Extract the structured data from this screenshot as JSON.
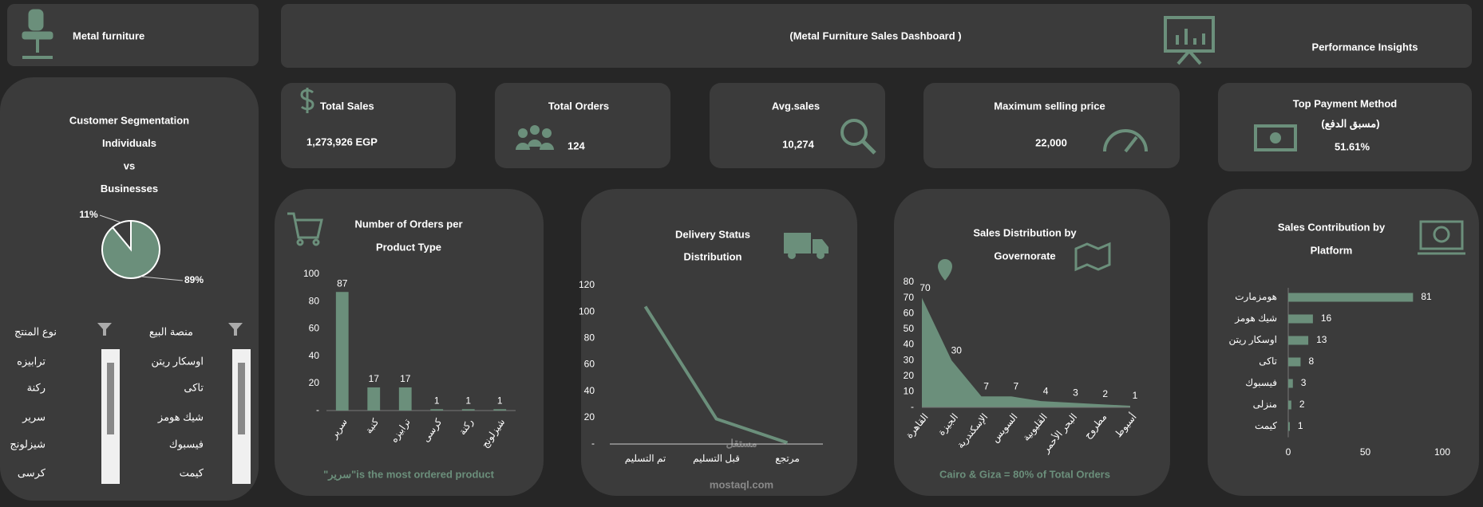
{
  "header": {
    "brand": "Metal furniture",
    "title": "(Metal Furniture Sales Dashboard )",
    "subtitle": "Performance Insights"
  },
  "kpis": [
    {
      "label": "Total Sales",
      "value": "1,273,926 EGP"
    },
    {
      "label": "Total Orders",
      "value": "124"
    },
    {
      "label": "Avg.sales",
      "value": "10,274"
    },
    {
      "label": "Maximum selling price",
      "value": "22,000"
    },
    {
      "label": "Top Payment Method",
      "detail": "(مسبق الدفع)",
      "value": "51.61%"
    }
  ],
  "slicers": [
    {
      "title": "نوع المنتج",
      "items": [
        "ترابيزه",
        "ركنة",
        "سرير",
        "شيزلونج",
        "كرسى"
      ]
    },
    {
      "title": "منصة البيع",
      "items": [
        "اوسكار ريتن",
        "تاكى",
        "شيك هومز",
        "فيسبوك",
        "كيمت"
      ]
    }
  ],
  "watermark": {
    "arabic": "مستقل",
    "latin": "mostaql.com"
  },
  "chart_data": [
    {
      "type": "pie",
      "title": [
        "Customer Segmentation",
        "Individuals",
        "vs",
        "Businesses"
      ],
      "values": [
        11,
        89
      ],
      "value_labels": [
        "11%",
        "89%"
      ],
      "colors": [
        "#3c3c3c",
        "#6b8f7b"
      ]
    },
    {
      "type": "bar",
      "title": [
        "Number of Orders per",
        "Product Type"
      ],
      "categories": [
        "سرير",
        "كنبة",
        "ترابيزه",
        "كرسى",
        "ركنة",
        "شيزلونج"
      ],
      "values": [
        87,
        17,
        17,
        1,
        1,
        1
      ],
      "color": "#6b8f7b",
      "ylim": [
        0,
        100
      ],
      "yticks": [
        {
          "value": 0,
          "label": "-"
        },
        20,
        40,
        60,
        80,
        100
      ],
      "annotation": "\"سرير\"is the most ordered product"
    },
    {
      "type": "line",
      "title": [
        "Delivery Status",
        "Distribution"
      ],
      "categories": [
        "تم التسليم",
        "قبل التسليم",
        "مرتجع"
      ],
      "values": [
        104,
        19,
        1
      ],
      "color": "#6b8f7b",
      "ylim": [
        0,
        120
      ],
      "yticks": [
        {
          "value": 0,
          "label": "-"
        },
        20,
        40,
        60,
        80,
        100,
        120
      ]
    },
    {
      "type": "area",
      "title": [
        "Sales Distribution by",
        "Governorate"
      ],
      "categories": [
        "القاهرة",
        "الجيزة",
        "الإسكندرية",
        "السويس",
        "القليوبية",
        "البحر الأحمر",
        "مطروح",
        "أسيوط"
      ],
      "values": [
        70,
        30,
        7,
        7,
        4,
        3,
        2,
        1
      ],
      "color": "#6b8f7b",
      "ylim": [
        0,
        80
      ],
      "yticks": [
        {
          "value": 0,
          "label": "-"
        },
        10,
        20,
        30,
        40,
        50,
        60,
        70,
        80
      ],
      "annotation": "Cairo & Giza = 80% of Total Orders"
    },
    {
      "type": "barh",
      "title": [
        "Sales Contribution by",
        "Platform"
      ],
      "categories": [
        "هومزمارت",
        "شيك هومز",
        "اوسكار ريتن",
        "تاكى",
        "فيسبوك",
        "منزلى",
        "كيمت"
      ],
      "values": [
        81,
        16,
        13,
        8,
        3,
        2,
        1
      ],
      "color": "#6b8f7b",
      "xlim": [
        0,
        100
      ],
      "xticks": [
        0,
        50,
        100
      ]
    }
  ]
}
